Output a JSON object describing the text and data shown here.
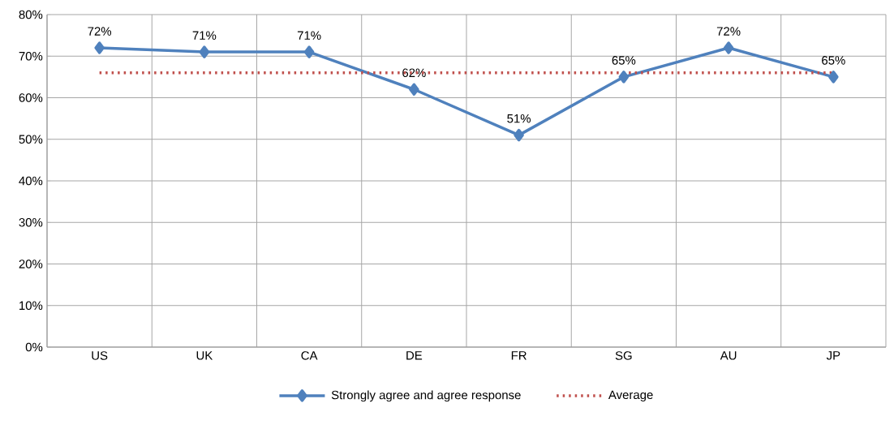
{
  "chart_data": {
    "type": "line",
    "categories": [
      "US",
      "UK",
      "CA",
      "DE",
      "FR",
      "SG",
      "AU",
      "JP"
    ],
    "series": [
      {
        "name": "Strongly agree and agree response",
        "color": "#4f81bd",
        "values": [
          72,
          71,
          71,
          62,
          51,
          65,
          72,
          65
        ],
        "value_labels": [
          "72%",
          "71%",
          "71%",
          "62%",
          "51%",
          "65%",
          "72%",
          "65%"
        ],
        "marker": "diamond",
        "line_style": "solid"
      },
      {
        "name": "Average",
        "color": "#c0504d",
        "values": [
          66,
          66,
          66,
          66,
          66,
          66,
          66,
          66
        ],
        "marker": "none",
        "line_style": "dotted"
      }
    ],
    "ylim": [
      0,
      80
    ],
    "yticks": [
      {
        "value": 0,
        "label": "0%"
      },
      {
        "value": 10,
        "label": "10%"
      },
      {
        "value": 20,
        "label": "20%"
      },
      {
        "value": 30,
        "label": "30%"
      },
      {
        "value": 40,
        "label": "40%"
      },
      {
        "value": 50,
        "label": "50%"
      },
      {
        "value": 60,
        "label": "60%"
      },
      {
        "value": 70,
        "label": "70%"
      },
      {
        "value": 80,
        "label": "80%"
      }
    ],
    "grid": true,
    "legend": "bottom"
  }
}
